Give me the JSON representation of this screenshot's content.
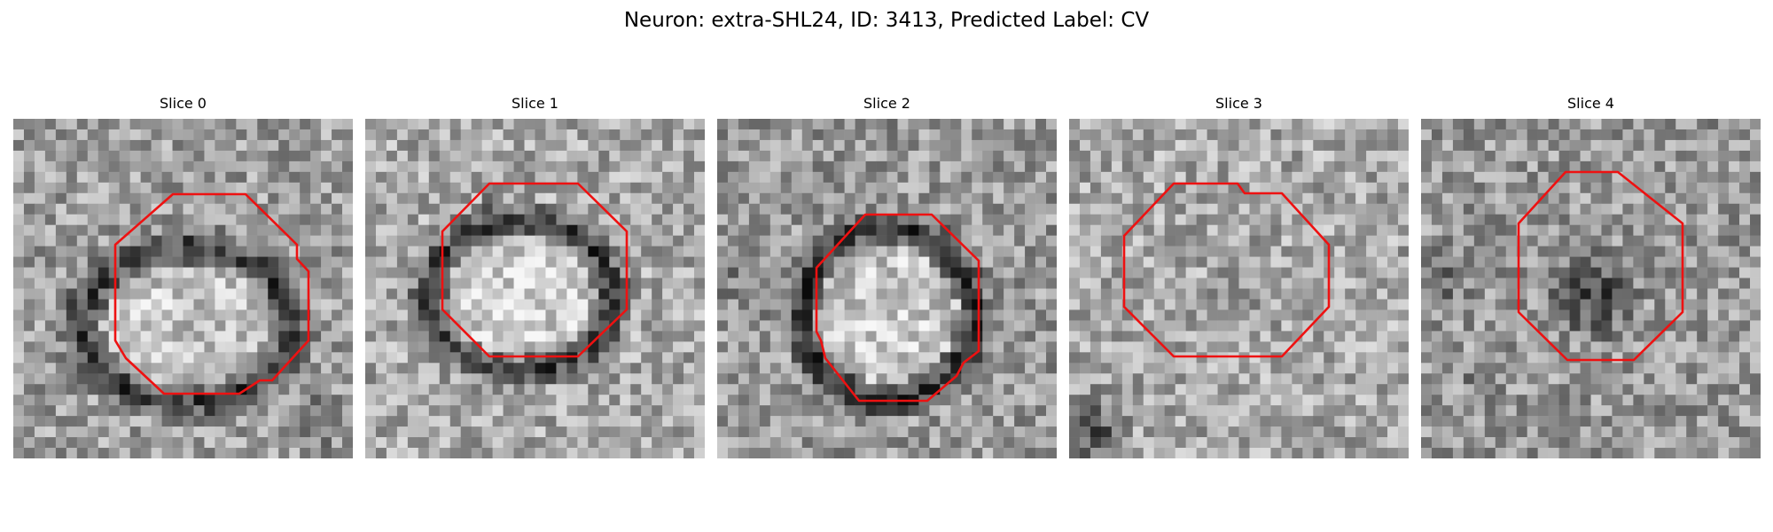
{
  "figure": {
    "title": "Neuron: extra-SHL24, ID: 3413, Predicted Label: CV"
  },
  "colors": {
    "outline": "#ee1111",
    "background": "#ffffff"
  },
  "panels": [
    {
      "title": "Slice 0"
    },
    {
      "title": "Slice 1"
    },
    {
      "title": "Slice 2"
    },
    {
      "title": "Slice 3"
    },
    {
      "title": "Slice 4"
    }
  ]
}
